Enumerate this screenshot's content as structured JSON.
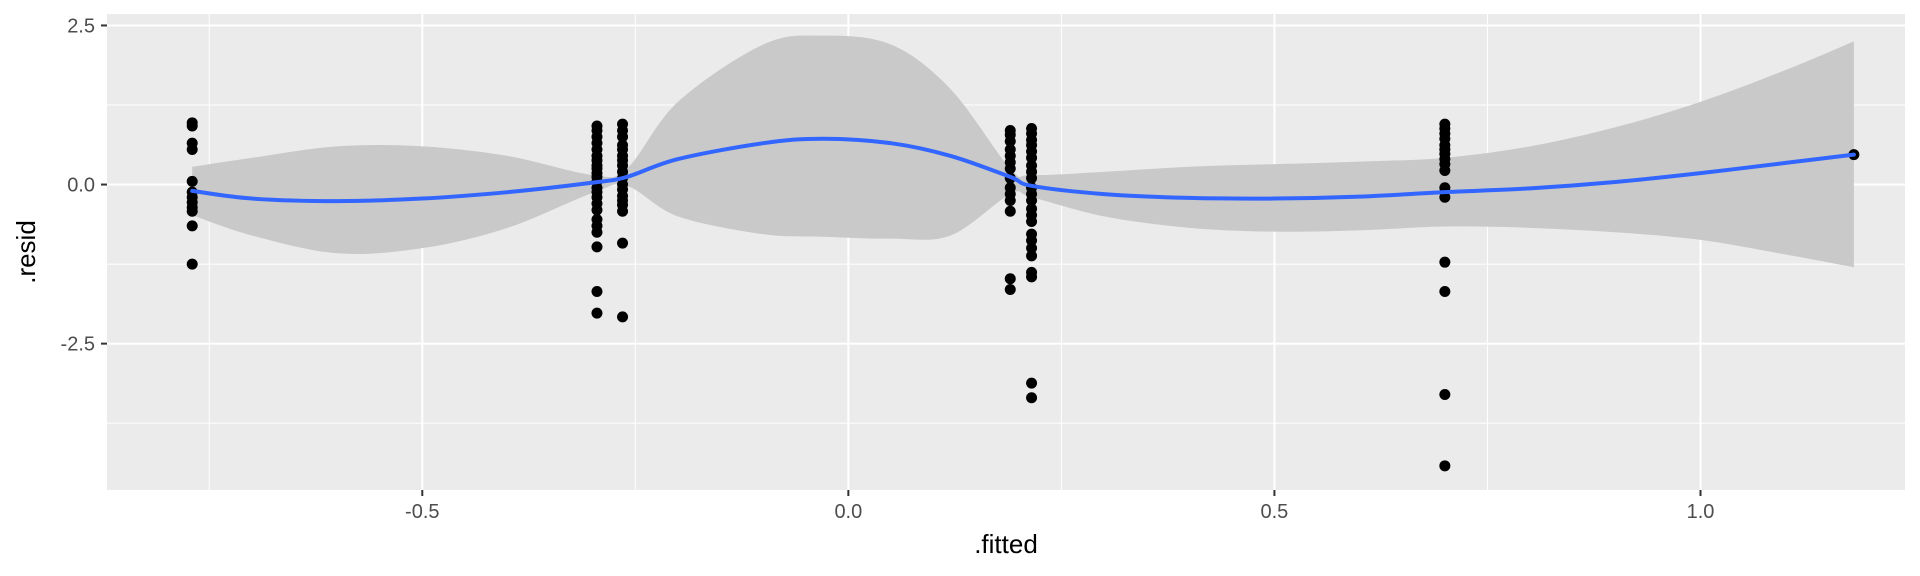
{
  "chart_data": {
    "type": "scatter",
    "title": "",
    "xlabel": ".fitted",
    "ylabel": ".resid",
    "xlim": [
      -0.87,
      1.24
    ],
    "ylim": [
      -4.8,
      2.68
    ],
    "x_ticks": [
      -0.5,
      0.0,
      0.5,
      1.0
    ],
    "x_tick_labels": [
      "-0.5",
      "0.0",
      "0.5",
      "1.0"
    ],
    "y_ticks": [
      -2.5,
      0.0,
      2.5
    ],
    "y_tick_labels": [
      "-2.5",
      "0.0",
      "2.5"
    ],
    "x_minor_ticks": [
      -0.75,
      -0.25,
      0.25,
      0.75
    ],
    "y_minor_ticks": [
      -3.75,
      -1.25,
      1.25
    ],
    "grid": true,
    "legend": "none",
    "colors": {
      "panel": "#ebebeb",
      "grid": "#ffffff",
      "points": "#000000",
      "smooth_line": "#3366ff",
      "confidence_band": "#c9c9c9"
    },
    "points": [
      {
        "x": -0.77,
        "y": 0.97
      },
      {
        "x": -0.77,
        "y": 0.92
      },
      {
        "x": -0.77,
        "y": 0.65
      },
      {
        "x": -0.77,
        "y": 0.55
      },
      {
        "x": -0.77,
        "y": 0.05
      },
      {
        "x": -0.77,
        "y": -0.12
      },
      {
        "x": -0.77,
        "y": -0.2
      },
      {
        "x": -0.77,
        "y": -0.28
      },
      {
        "x": -0.77,
        "y": -0.36
      },
      {
        "x": -0.77,
        "y": -0.42
      },
      {
        "x": -0.77,
        "y": -0.65
      },
      {
        "x": -0.77,
        "y": -1.25
      },
      {
        "x": -0.295,
        "y": 0.92
      },
      {
        "x": -0.295,
        "y": 0.85
      },
      {
        "x": -0.295,
        "y": 0.75
      },
      {
        "x": -0.295,
        "y": 0.65
      },
      {
        "x": -0.295,
        "y": 0.55
      },
      {
        "x": -0.295,
        "y": 0.45
      },
      {
        "x": -0.295,
        "y": 0.38
      },
      {
        "x": -0.295,
        "y": 0.3
      },
      {
        "x": -0.295,
        "y": 0.25
      },
      {
        "x": -0.295,
        "y": 0.18
      },
      {
        "x": -0.295,
        "y": 0.12
      },
      {
        "x": -0.295,
        "y": 0.05
      },
      {
        "x": -0.295,
        "y": -0.05
      },
      {
        "x": -0.295,
        "y": -0.12
      },
      {
        "x": -0.295,
        "y": -0.2
      },
      {
        "x": -0.295,
        "y": -0.3
      },
      {
        "x": -0.295,
        "y": -0.4
      },
      {
        "x": -0.295,
        "y": -0.55
      },
      {
        "x": -0.295,
        "y": -0.65
      },
      {
        "x": -0.295,
        "y": -0.75
      },
      {
        "x": -0.295,
        "y": -0.98
      },
      {
        "x": -0.295,
        "y": -1.68
      },
      {
        "x": -0.295,
        "y": -2.02
      },
      {
        "x": -0.265,
        "y": 0.95
      },
      {
        "x": -0.265,
        "y": 0.85
      },
      {
        "x": -0.265,
        "y": 0.75
      },
      {
        "x": -0.265,
        "y": 0.62
      },
      {
        "x": -0.265,
        "y": 0.55
      },
      {
        "x": -0.265,
        "y": 0.45
      },
      {
        "x": -0.265,
        "y": 0.38
      },
      {
        "x": -0.265,
        "y": 0.3
      },
      {
        "x": -0.265,
        "y": 0.2
      },
      {
        "x": -0.265,
        "y": 0.1
      },
      {
        "x": -0.265,
        "y": 0.0
      },
      {
        "x": -0.265,
        "y": -0.08
      },
      {
        "x": -0.265,
        "y": -0.18
      },
      {
        "x": -0.265,
        "y": -0.25
      },
      {
        "x": -0.265,
        "y": -0.32
      },
      {
        "x": -0.265,
        "y": -0.42
      },
      {
        "x": -0.265,
        "y": -0.92
      },
      {
        "x": -0.265,
        "y": -2.08
      },
      {
        "x": 0.19,
        "y": 0.85
      },
      {
        "x": 0.19,
        "y": 0.78
      },
      {
        "x": 0.19,
        "y": 0.68
      },
      {
        "x": 0.19,
        "y": 0.55
      },
      {
        "x": 0.19,
        "y": 0.45
      },
      {
        "x": 0.19,
        "y": 0.35
      },
      {
        "x": 0.19,
        "y": 0.25
      },
      {
        "x": 0.19,
        "y": 0.1
      },
      {
        "x": 0.19,
        "y": -0.05
      },
      {
        "x": 0.19,
        "y": -0.15
      },
      {
        "x": 0.19,
        "y": -0.25
      },
      {
        "x": 0.19,
        "y": -0.42
      },
      {
        "x": 0.19,
        "y": -1.48
      },
      {
        "x": 0.19,
        "y": -1.65
      },
      {
        "x": 0.215,
        "y": 0.88
      },
      {
        "x": 0.215,
        "y": 0.8
      },
      {
        "x": 0.215,
        "y": 0.7
      },
      {
        "x": 0.215,
        "y": 0.62
      },
      {
        "x": 0.215,
        "y": 0.52
      },
      {
        "x": 0.215,
        "y": 0.42
      },
      {
        "x": 0.215,
        "y": 0.3
      },
      {
        "x": 0.215,
        "y": 0.2
      },
      {
        "x": 0.215,
        "y": 0.1
      },
      {
        "x": 0.215,
        "y": -0.05
      },
      {
        "x": 0.215,
        "y": -0.15
      },
      {
        "x": 0.215,
        "y": -0.25
      },
      {
        "x": 0.215,
        "y": -0.38
      },
      {
        "x": 0.215,
        "y": -0.48
      },
      {
        "x": 0.215,
        "y": -0.58
      },
      {
        "x": 0.215,
        "y": -0.78
      },
      {
        "x": 0.215,
        "y": -0.88
      },
      {
        "x": 0.215,
        "y": -1.0
      },
      {
        "x": 0.215,
        "y": -1.12
      },
      {
        "x": 0.215,
        "y": -1.38
      },
      {
        "x": 0.215,
        "y": -1.45
      },
      {
        "x": 0.215,
        "y": -3.12
      },
      {
        "x": 0.215,
        "y": -3.35
      },
      {
        "x": 0.7,
        "y": 0.95
      },
      {
        "x": 0.7,
        "y": 0.88
      },
      {
        "x": 0.7,
        "y": 0.8
      },
      {
        "x": 0.7,
        "y": 0.72
      },
      {
        "x": 0.7,
        "y": 0.62
      },
      {
        "x": 0.7,
        "y": 0.55
      },
      {
        "x": 0.7,
        "y": 0.48
      },
      {
        "x": 0.7,
        "y": 0.4
      },
      {
        "x": 0.7,
        "y": 0.32
      },
      {
        "x": 0.7,
        "y": 0.22
      },
      {
        "x": 0.7,
        "y": -0.05
      },
      {
        "x": 0.7,
        "y": -0.2
      },
      {
        "x": 0.7,
        "y": -1.22
      },
      {
        "x": 0.7,
        "y": -1.68
      },
      {
        "x": 0.7,
        "y": -3.3
      },
      {
        "x": 0.7,
        "y": -4.42
      },
      {
        "x": 1.18,
        "y": 0.47
      }
    ],
    "smooth_fit": {
      "x": [
        -0.77,
        -0.7,
        -0.6,
        -0.5,
        -0.4,
        -0.3,
        -0.26,
        -0.2,
        -0.1,
        -0.03,
        0.05,
        0.12,
        0.19,
        0.215,
        0.3,
        0.4,
        0.5,
        0.6,
        0.7,
        0.8,
        0.9,
        1.0,
        1.1,
        1.18
      ],
      "y": [
        -0.1,
        -0.22,
        -0.26,
        -0.22,
        -0.12,
        0.03,
        0.12,
        0.4,
        0.65,
        0.72,
        0.65,
        0.45,
        0.12,
        -0.02,
        -0.15,
        -0.21,
        -0.22,
        -0.19,
        -0.12,
        -0.06,
        0.04,
        0.18,
        0.34,
        0.47
      ],
      "upper": [
        0.28,
        0.42,
        0.6,
        0.6,
        0.45,
        0.15,
        0.25,
        1.3,
        2.2,
        2.34,
        2.2,
        1.5,
        0.25,
        0.15,
        0.2,
        0.28,
        0.32,
        0.36,
        0.42,
        0.6,
        0.9,
        1.3,
        1.8,
        2.25
      ],
      "lower": [
        -0.48,
        -0.8,
        -1.08,
        -1.0,
        -0.68,
        -0.13,
        -0.02,
        -0.5,
        -0.78,
        -0.82,
        -0.85,
        -0.8,
        -0.15,
        -0.2,
        -0.5,
        -0.68,
        -0.74,
        -0.72,
        -0.66,
        -0.68,
        -0.75,
        -0.87,
        -1.1,
        -1.3
      ]
    }
  }
}
